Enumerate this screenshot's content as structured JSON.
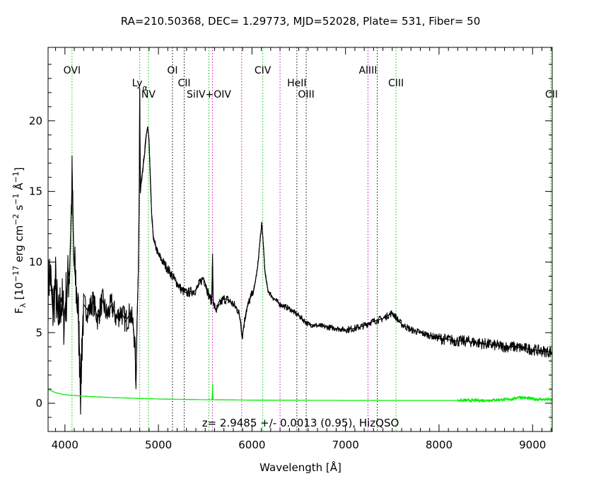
{
  "chart_data": {
    "type": "line",
    "title": "RA=210.50368, DEC= 1.29773, MJD=52028, Plate= 531, Fiber= 50",
    "xlabel": "Wavelength [Å]",
    "ylabel_parts": {
      "f": "F",
      "lambda": "λ",
      "open": " [10",
      "exp1": "−17",
      "mid1": " erg cm",
      "exp2": "−2",
      "mid2": " s",
      "exp3": "−1",
      "unit": " Å",
      "exp4": "−1",
      "close": "]"
    },
    "xlim": [
      3820,
      9210
    ],
    "ylim": [
      -2,
      25.2
    ],
    "x_ticks": [
      4000,
      5000,
      6000,
      7000,
      8000,
      9000
    ],
    "x_tick_labels": [
      "4000",
      "5000",
      "6000",
      "7000",
      "8000",
      "9000"
    ],
    "y_ticks": [
      0,
      5,
      10,
      15,
      20
    ],
    "y_tick_labels": [
      "0",
      "5",
      "10",
      "15",
      "20"
    ],
    "annotation": "z= 2.9485 +/- 0.0013 (0.95), HizQSO",
    "colors": {
      "spectrum": "#000000",
      "error": "#00ee00",
      "green_line": "#00cc00",
      "black_line": "#000000",
      "magenta_line": "#cc00cc"
    },
    "spectral_lines": [
      {
        "name": "OVI",
        "wavelength": 4076,
        "color": "green",
        "label_y": 23.6
      },
      {
        "name": "Ly",
        "sub": "α",
        "wavelength": 4800,
        "color": "green",
        "label_y": 22.7
      },
      {
        "name": "NV",
        "wavelength": 4893,
        "color": "green",
        "label_y": 21.9
      },
      {
        "name": "OI",
        "wavelength": 5150,
        "color": "black",
        "label_y": 23.6
      },
      {
        "name": "CII",
        "wavelength": 5275,
        "color": "black",
        "label_y": 22.7
      },
      {
        "name": "SiIV+OIV",
        "wavelength": 5540,
        "color": "green",
        "label_y": 21.9
      },
      {
        "name": "",
        "wavelength": 5577,
        "color": "magenta"
      },
      {
        "name": "",
        "wavelength": 5890,
        "color": "magenta"
      },
      {
        "name": "CIV",
        "wavelength": 6115,
        "color": "green",
        "label_y": 23.6
      },
      {
        "name": "",
        "wavelength": 6300,
        "color": "magenta"
      },
      {
        "name": "HeII",
        "wavelength": 6480,
        "color": "black",
        "label_y": 22.7
      },
      {
        "name": "OIII",
        "wavelength": 6580,
        "color": "black",
        "label_y": 21.9
      },
      {
        "name": "AlIII",
        "wavelength": 7240,
        "color": "magenta",
        "label_y": 23.6
      },
      {
        "name": "",
        "wavelength": 7340,
        "color": "black"
      },
      {
        "name": "CIII",
        "wavelength": 7540,
        "color": "green",
        "label_y": 22.7
      },
      {
        "name": "CII",
        "wavelength": 9195,
        "color": "green",
        "label_y": 21.9
      }
    ],
    "series": [
      {
        "role": "flux",
        "color": "#000000",
        "anchors": [
          [
            3820,
            8.0
          ],
          [
            3840,
            9.5
          ],
          [
            3870,
            6.5
          ],
          [
            3900,
            8.5
          ],
          [
            3930,
            5.5
          ],
          [
            3960,
            7.5
          ],
          [
            3990,
            6.0
          ],
          [
            4020,
            8.0
          ],
          [
            4050,
            9.5
          ],
          [
            4070,
            14.0
          ],
          [
            4078,
            16.3
          ],
          [
            4085,
            13.0
          ],
          [
            4095,
            10.0
          ],
          [
            4110,
            9.0
          ],
          [
            4140,
            6.5
          ],
          [
            4160,
            3.0
          ],
          [
            4170,
            0.6
          ],
          [
            4180,
            4.0
          ],
          [
            4200,
            7.0
          ],
          [
            4250,
            6.5
          ],
          [
            4300,
            7.2
          ],
          [
            4350,
            6.0
          ],
          [
            4400,
            7.3
          ],
          [
            4450,
            6.2
          ],
          [
            4500,
            7.0
          ],
          [
            4550,
            6.0
          ],
          [
            4600,
            6.5
          ],
          [
            4650,
            5.8
          ],
          [
            4700,
            6.4
          ],
          [
            4730,
            5.5
          ],
          [
            4750,
            4.0
          ],
          [
            4760,
            1.0
          ],
          [
            4770,
            5.5
          ],
          [
            4785,
            9.5
          ],
          [
            4795,
            15.0
          ],
          [
            4800,
            22.3
          ],
          [
            4806,
            15.0
          ],
          [
            4820,
            16.0
          ],
          [
            4850,
            17.5
          ],
          [
            4870,
            19.0
          ],
          [
            4885,
            19.6
          ],
          [
            4900,
            18.5
          ],
          [
            4915,
            15.5
          ],
          [
            4930,
            13.0
          ],
          [
            4950,
            11.5
          ],
          [
            4975,
            11.0
          ],
          [
            5000,
            10.5
          ],
          [
            5050,
            10.0
          ],
          [
            5100,
            9.5
          ],
          [
            5150,
            9.0
          ],
          [
            5200,
            8.5
          ],
          [
            5250,
            8.0
          ],
          [
            5300,
            7.8
          ],
          [
            5350,
            7.9
          ],
          [
            5400,
            8.0
          ],
          [
            5450,
            8.6
          ],
          [
            5480,
            8.9
          ],
          [
            5510,
            8.3
          ],
          [
            5540,
            7.6
          ],
          [
            5570,
            7.2
          ],
          [
            5578,
            10.6
          ],
          [
            5586,
            7.0
          ],
          [
            5620,
            6.6
          ],
          [
            5650,
            7.0
          ],
          [
            5700,
            7.4
          ],
          [
            5750,
            7.3
          ],
          [
            5800,
            7.0
          ],
          [
            5850,
            6.6
          ],
          [
            5880,
            5.8
          ],
          [
            5895,
            4.6
          ],
          [
            5910,
            5.4
          ],
          [
            5940,
            6.6
          ],
          [
            5980,
            7.4
          ],
          [
            6020,
            8.0
          ],
          [
            6060,
            9.6
          ],
          [
            6090,
            11.8
          ],
          [
            6105,
            12.7
          ],
          [
            6120,
            11.4
          ],
          [
            6140,
            9.2
          ],
          [
            6170,
            8.0
          ],
          [
            6220,
            7.5
          ],
          [
            6300,
            7.0
          ],
          [
            6400,
            6.7
          ],
          [
            6500,
            6.2
          ],
          [
            6600,
            5.6
          ],
          [
            6700,
            5.5
          ],
          [
            6800,
            5.4
          ],
          [
            6900,
            5.3
          ],
          [
            7000,
            5.2
          ],
          [
            7100,
            5.3
          ],
          [
            7200,
            5.5
          ],
          [
            7250,
            5.7
          ],
          [
            7300,
            5.8
          ],
          [
            7400,
            6.0
          ],
          [
            7450,
            6.2
          ],
          [
            7500,
            6.4
          ],
          [
            7550,
            6.0
          ],
          [
            7600,
            5.6
          ],
          [
            7700,
            5.2
          ],
          [
            7800,
            5.0
          ],
          [
            7900,
            4.8
          ],
          [
            8000,
            4.6
          ],
          [
            8100,
            4.5
          ],
          [
            8200,
            4.4
          ],
          [
            8300,
            4.4
          ],
          [
            8400,
            4.3
          ],
          [
            8500,
            4.2
          ],
          [
            8600,
            4.1
          ],
          [
            8700,
            4.0
          ],
          [
            8800,
            4.0
          ],
          [
            8900,
            3.9
          ],
          [
            9000,
            3.8
          ],
          [
            9100,
            3.7
          ],
          [
            9210,
            3.6
          ]
        ]
      },
      {
        "role": "error",
        "color": "#00ee00",
        "anchors": [
          [
            3820,
            1.0
          ],
          [
            3900,
            0.75
          ],
          [
            4000,
            0.6
          ],
          [
            4200,
            0.5
          ],
          [
            4500,
            0.4
          ],
          [
            5000,
            0.3
          ],
          [
            5500,
            0.25
          ],
          [
            5575,
            0.25
          ],
          [
            5578,
            1.4
          ],
          [
            5582,
            0.25
          ],
          [
            6000,
            0.22
          ],
          [
            7000,
            0.2
          ],
          [
            8000,
            0.2
          ],
          [
            8500,
            0.2
          ],
          [
            8800,
            0.3
          ],
          [
            8850,
            0.45
          ],
          [
            9000,
            0.3
          ],
          [
            9210,
            0.25
          ]
        ]
      }
    ]
  }
}
